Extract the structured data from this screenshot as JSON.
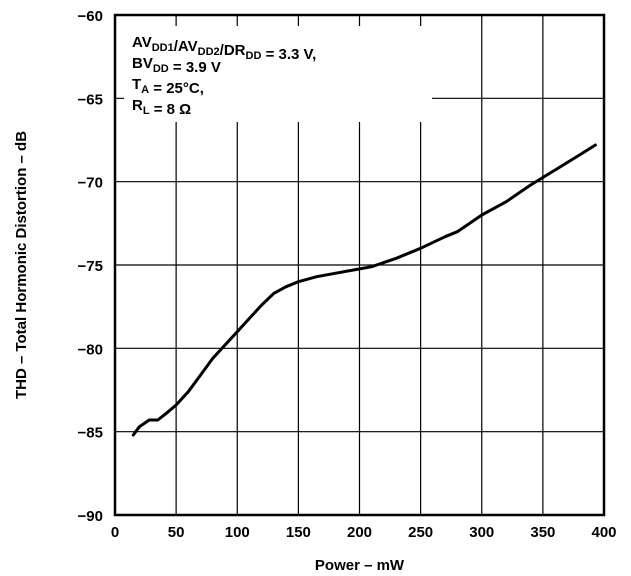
{
  "chart_data": {
    "type": "line",
    "xlabel": "Power – mW",
    "ylabel": "THD – Total Hormonic Distortion – dB",
    "xlim": [
      0,
      400
    ],
    "ylim": [
      -90,
      -60
    ],
    "x_ticks": [
      0,
      50,
      100,
      150,
      200,
      250,
      300,
      350,
      400
    ],
    "y_ticks": [
      -60,
      -65,
      -70,
      -75,
      -80,
      -85,
      -90
    ],
    "x_tick_labels": [
      "0",
      "50",
      "100",
      "150",
      "200",
      "250",
      "300",
      "350",
      "400"
    ],
    "y_tick_labels": [
      "−60",
      "−65",
      "−70",
      "−75",
      "−80",
      "−85",
      "−90"
    ],
    "grid": true,
    "conditions": [
      {
        "parts": [
          {
            "t": "AV",
            "sub": false
          },
          {
            "t": "DD1",
            "sub": true
          },
          {
            "t": "/AV",
            "sub": false
          },
          {
            "t": "DD2",
            "sub": true
          },
          {
            "t": "/DR",
            "sub": false
          },
          {
            "t": "DD",
            "sub": true
          },
          {
            "t": " = 3.3 V,",
            "sub": false
          }
        ]
      },
      {
        "parts": [
          {
            "t": "BV",
            "sub": false
          },
          {
            "t": "DD",
            "sub": true
          },
          {
            "t": " = 3.9 V",
            "sub": false
          }
        ]
      },
      {
        "parts": [
          {
            "t": "T",
            "sub": false
          },
          {
            "t": "A",
            "sub": true
          },
          {
            "t": " = 25°C,",
            "sub": false
          }
        ]
      },
      {
        "parts": [
          {
            "t": "R",
            "sub": false
          },
          {
            "t": "L",
            "sub": true
          },
          {
            "t": " = 8 Ω",
            "sub": false
          }
        ]
      }
    ],
    "series": [
      {
        "x": [
          15,
          20,
          28,
          35,
          42,
          50,
          60,
          70,
          80,
          90,
          100,
          110,
          120,
          130,
          140,
          150,
          165,
          180,
          195,
          210,
          230,
          250,
          270,
          280,
          300,
          320,
          340,
          360,
          380,
          393
        ],
        "y": [
          -85.2,
          -84.7,
          -84.3,
          -84.3,
          -83.9,
          -83.4,
          -82.6,
          -81.6,
          -80.6,
          -79.8,
          -79.0,
          -78.2,
          -77.4,
          -76.7,
          -76.3,
          -76.0,
          -75.7,
          -75.5,
          -75.3,
          -75.1,
          -74.6,
          -74.0,
          -73.3,
          -73.0,
          -72.0,
          -71.2,
          -70.2,
          -69.3,
          -68.4,
          -67.8
        ]
      }
    ]
  }
}
